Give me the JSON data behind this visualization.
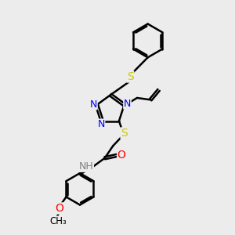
{
  "bg_color": "#ececec",
  "bond_color": "#000000",
  "N_color": "#0000ff",
  "S_color": "#cccc00",
  "O_color": "#ff0000",
  "H_color": "#808080",
  "line_width": 1.8,
  "fig_size": [
    3.0,
    3.0
  ],
  "dpi": 100,
  "xlim": [
    0,
    10
  ],
  "ylim": [
    0,
    10
  ]
}
